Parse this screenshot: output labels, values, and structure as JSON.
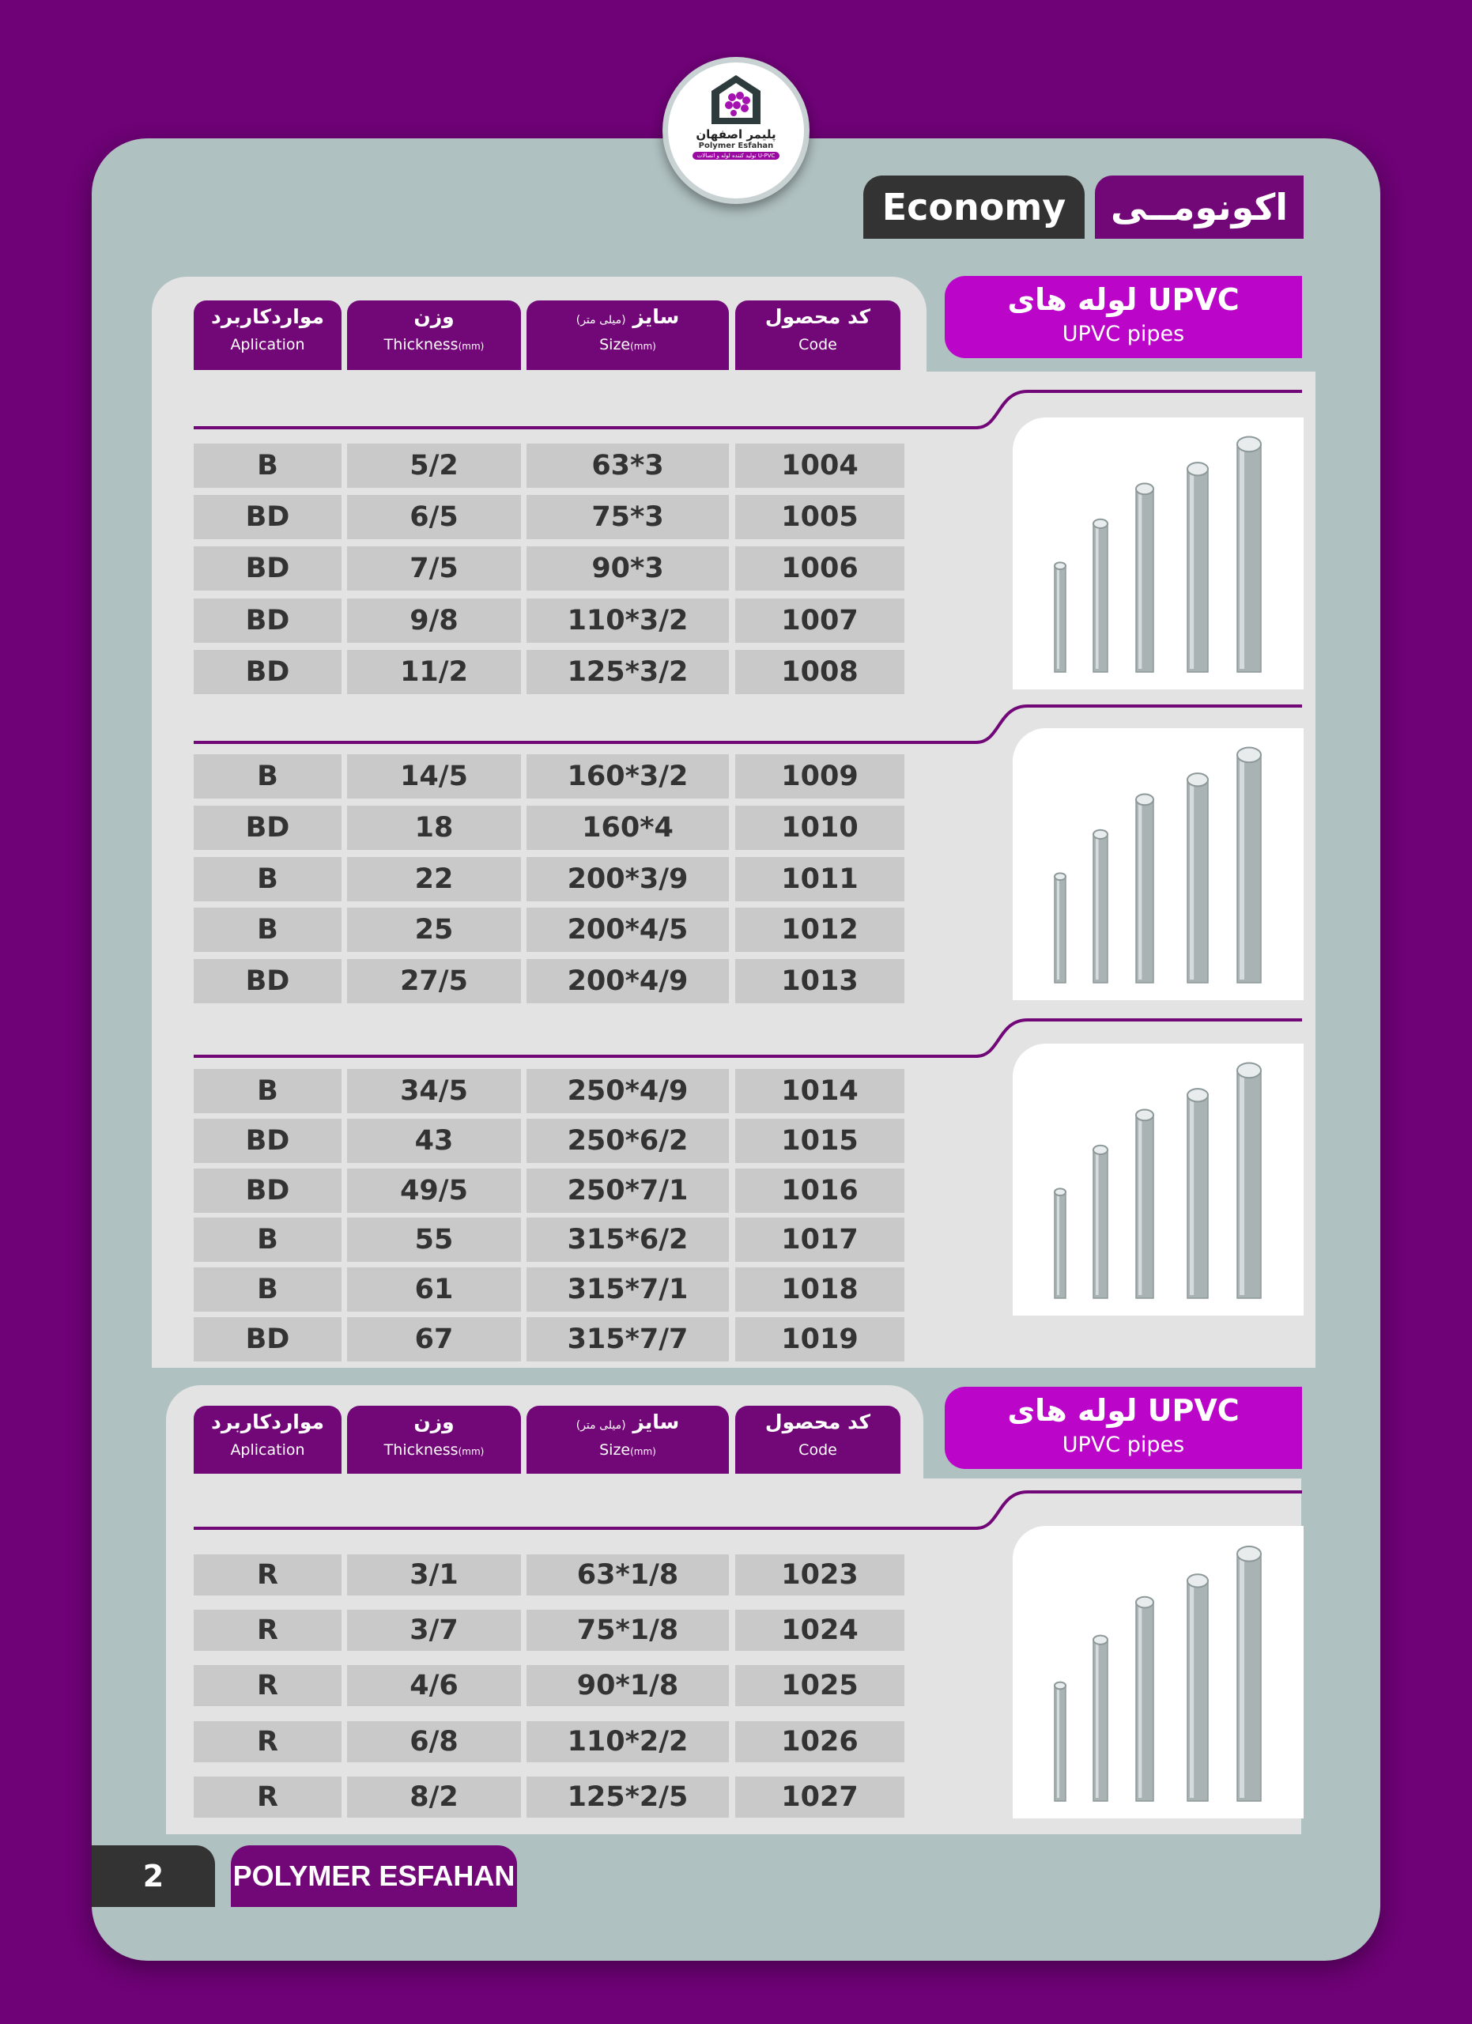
{
  "logo": {
    "name_fa": "پلیمر اصفهان",
    "name_en": "Polymer Esfahan",
    "tagline": "تولید کننده لوله و اتصالات U-PVC"
  },
  "title": {
    "fa": "اکونومــی",
    "en": "Economy"
  },
  "header": {
    "application_fa": "مواردکاربرد",
    "application_en": "Aplication",
    "weight_fa": "وزن",
    "weight_en": "Thickness",
    "weight_unit": "(mm)",
    "size_fa": "سایز",
    "size_note_fa": "(میلی متر)",
    "size_en": "Size",
    "size_unit": "(mm)",
    "code_fa": "کد محصول",
    "code_en": "Code"
  },
  "tabs": [
    {
      "fa": "لوله های UPVC",
      "en": "UPVC pipes"
    },
    {
      "fa": "لوله های UPVC",
      "en": "UPVC pipes"
    }
  ],
  "groups": [
    {
      "rows": [
        {
          "app": "B",
          "weight": "5/2",
          "size": "63*3",
          "code": "1004"
        },
        {
          "app": "BD",
          "weight": "6/5",
          "size": "75*3",
          "code": "1005"
        },
        {
          "app": "BD",
          "weight": "7/5",
          "size": "90*3",
          "code": "1006"
        },
        {
          "app": "BD",
          "weight": "9/8",
          "size": "110*3/2",
          "code": "1007"
        },
        {
          "app": "BD",
          "weight": "11/2",
          "size": "125*3/2",
          "code": "1008"
        }
      ]
    },
    {
      "rows": [
        {
          "app": "B",
          "weight": "14/5",
          "size": "160*3/2",
          "code": "1009"
        },
        {
          "app": "BD",
          "weight": "18",
          "size": "160*4",
          "code": "1010"
        },
        {
          "app": "B",
          "weight": "22",
          "size": "200*3/9",
          "code": "1011"
        },
        {
          "app": "B",
          "weight": "25",
          "size": "200*4/5",
          "code": "1012"
        },
        {
          "app": "BD",
          "weight": "27/5",
          "size": "200*4/9",
          "code": "1013"
        }
      ]
    },
    {
      "rows": [
        {
          "app": "B",
          "weight": "34/5",
          "size": "250*4/9",
          "code": "1014"
        },
        {
          "app": "BD",
          "weight": "43",
          "size": "250*6/2",
          "code": "1015"
        },
        {
          "app": "BD",
          "weight": "49/5",
          "size": "250*7/1",
          "code": "1016"
        },
        {
          "app": "B",
          "weight": "55",
          "size": "315*6/2",
          "code": "1017"
        },
        {
          "app": "B",
          "weight": "61",
          "size": "315*7/1",
          "code": "1018"
        },
        {
          "app": "BD",
          "weight": "67",
          "size": "315*7/7",
          "code": "1019"
        }
      ]
    },
    {
      "rows": [
        {
          "app": "R",
          "weight": "3/1",
          "size": "63*1/8",
          "code": "1023"
        },
        {
          "app": "R",
          "weight": "3/7",
          "size": "75*1/8",
          "code": "1024"
        },
        {
          "app": "R",
          "weight": "4/6",
          "size": "90*1/8",
          "code": "1025"
        },
        {
          "app": "R",
          "weight": "6/8",
          "size": "110*2/2",
          "code": "1026"
        },
        {
          "app": "R",
          "weight": "8/2",
          "size": "125*2/5",
          "code": "1027"
        }
      ]
    }
  ],
  "footer": {
    "page": "2",
    "brand": "POLYMER ESFAHAN"
  },
  "colors": {
    "purple": "#720777",
    "magenta": "#bb05c9",
    "card": "#b0c1c2",
    "cell": "#c9c9ca"
  }
}
